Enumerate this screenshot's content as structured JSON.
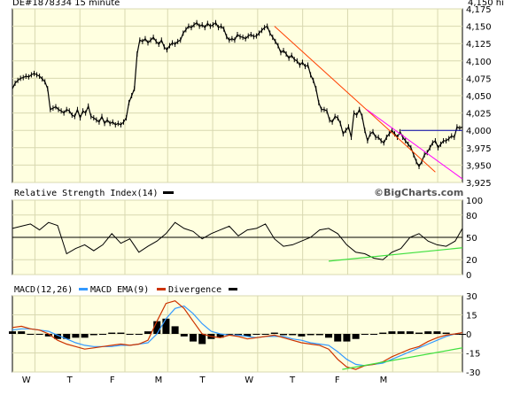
{
  "header_text": "DE#1878334 15 minute",
  "header_right": "4,150 hi",
  "brand": "©BigCharts.com",
  "colors": {
    "panel_bg": "#ffffe0",
    "grid": "#d8d8b0",
    "price": "#000000",
    "trend_down": "#ff4000",
    "trend_magenta": "#ff00ff",
    "resistance": "#0000aa",
    "support_green": "#40e040",
    "macd": "#000000",
    "macd_ema": "#3399ff",
    "divergence": "#000000",
    "macd_red": "#cc3300"
  },
  "chart_data": [
    {
      "type": "line",
      "name": "price",
      "ylim": [
        3925,
        4175
      ],
      "yticks": [
        "4,175",
        "4,150",
        "4,125",
        "4,100",
        "4,075",
        "4,050",
        "4,025",
        "4,000",
        "3,975",
        "3,950",
        "3,925"
      ],
      "ytick_values": [
        4175,
        4150,
        4125,
        4100,
        4075,
        4050,
        4025,
        4000,
        3975,
        3950,
        3925
      ],
      "x_labels": [
        "W",
        "T",
        "F",
        "M",
        "T",
        "W",
        "T",
        "F",
        "M"
      ],
      "x": [
        0,
        3,
        6,
        9,
        12,
        15,
        18,
        21,
        24,
        27,
        30,
        33,
        36,
        39,
        42,
        45,
        48,
        51,
        54,
        57,
        60,
        63,
        66,
        69,
        72,
        75,
        78,
        81,
        84,
        87,
        90,
        93,
        96,
        99,
        102,
        105,
        108,
        111,
        114,
        117,
        120,
        123,
        126,
        129,
        132,
        135,
        138,
        141,
        144,
        147,
        150,
        153,
        156,
        159,
        162,
        165,
        168,
        171,
        174,
        177,
        180,
        183,
        186,
        189,
        192,
        195,
        198,
        201,
        204,
        207,
        210,
        213,
        216,
        219,
        222,
        225,
        228,
        231,
        234,
        237,
        240,
        243,
        246,
        249,
        252,
        255,
        258,
        261,
        264,
        267,
        270,
        273,
        276,
        279,
        282,
        285,
        288,
        291,
        294,
        297,
        300,
        303,
        306,
        309,
        312,
        315,
        318,
        321,
        324,
        327,
        330,
        333,
        336,
        339,
        342,
        345,
        348,
        351,
        354,
        357,
        360,
        363,
        366,
        369,
        372,
        375,
        378,
        381,
        384,
        387,
        390,
        393,
        396,
        399,
        402,
        405,
        408,
        411,
        414,
        417,
        420,
        423,
        426,
        429,
        432,
        435,
        438,
        441,
        444,
        447,
        450,
        453,
        456,
        459,
        462,
        465,
        468,
        471,
        474,
        477,
        480,
        483,
        486,
        489,
        492,
        495,
        498
      ],
      "y": [
        4060,
        4068,
        4072,
        4075,
        4076,
        4078,
        4077,
        4080,
        4082,
        4080,
        4078,
        4074,
        4070,
        4060,
        4030,
        4032,
        4034,
        4030,
        4028,
        4025,
        4030,
        4028,
        4022,
        4020,
        4030,
        4018,
        4028,
        4025,
        4035,
        4020,
        4018,
        4015,
        4012,
        4020,
        4010,
        4015,
        4010,
        4012,
        4008,
        4010,
        4008,
        4012,
        4018,
        4040,
        4050,
        4060,
        4110,
        4130,
        4128,
        4132,
        4126,
        4130,
        4134,
        4128,
        4124,
        4130,
        4120,
        4116,
        4122,
        4126,
        4124,
        4128,
        4130,
        4140,
        4145,
        4150,
        4148,
        4152,
        4155,
        4150,
        4152,
        4148,
        4154,
        4150,
        4152,
        4155,
        4148,
        4150,
        4146,
        4135,
        4130,
        4132,
        4130,
        4138,
        4135,
        4134,
        4132,
        4136,
        4138,
        4135,
        4136,
        4140,
        4144,
        4148,
        4150,
        4140,
        4134,
        4128,
        4122,
        4112,
        4115,
        4110,
        4104,
        4108,
        4102,
        4100,
        4094,
        4098,
        4092,
        4094,
        4080,
        4072,
        4060,
        4040,
        4030,
        4030,
        4028,
        4015,
        4012,
        4020,
        4018,
        4010,
        3995,
        4000,
        4005,
        3990,
        4025,
        4022,
        4030,
        4020,
        4000,
        3985,
        3995,
        3998,
        3990,
        3990,
        3985,
        3982,
        3990,
        3995,
        4000,
        3995,
        3990,
        3998,
        3990,
        3985,
        3980,
        3975,
        3965,
        3955,
        3948,
        3955,
        3965,
        3968,
        3975,
        3982,
        3985,
        3975,
        3980,
        3985,
        3985,
        3988,
        3992,
        3990,
        4005,
        4003,
        4005
      ]
    },
    {
      "type": "line",
      "name": "Relative Strength Index(14)",
      "ylim": [
        0,
        100
      ],
      "yticks": [
        "100",
        "80",
        "50",
        "20",
        "0"
      ],
      "ytick_values": [
        100,
        80,
        50,
        20,
        0
      ],
      "x": [
        0,
        10,
        20,
        30,
        40,
        50,
        60,
        70,
        80,
        90,
        100,
        110,
        120,
        130,
        140,
        150,
        160,
        170,
        180,
        190,
        200,
        210,
        220,
        230,
        240,
        250,
        260,
        270,
        280,
        290,
        300,
        310,
        320,
        330,
        340,
        350,
        360,
        370,
        380,
        390,
        400,
        410,
        420,
        430,
        440,
        450,
        460,
        470,
        480,
        490,
        498
      ],
      "y": [
        62,
        65,
        68,
        60,
        70,
        66,
        28,
        35,
        40,
        32,
        40,
        55,
        42,
        48,
        30,
        38,
        45,
        55,
        70,
        62,
        58,
        48,
        55,
        60,
        65,
        52,
        60,
        62,
        68,
        48,
        38,
        40,
        45,
        50,
        60,
        62,
        55,
        40,
        30,
        28,
        22,
        20,
        30,
        35,
        50,
        55,
        45,
        40,
        38,
        45,
        62
      ]
    },
    {
      "type": "line",
      "name": "MACD(12,26)",
      "ylim": [
        -30,
        30
      ],
      "yticks": [
        "30",
        "15",
        "0",
        "-15",
        "-30"
      ],
      "ytick_values": [
        30,
        15,
        0,
        -15,
        -30
      ],
      "legend": [
        "MACD(12,26)",
        "MACD EMA(9)",
        "Divergence"
      ],
      "x": [
        0,
        10,
        20,
        30,
        40,
        50,
        60,
        70,
        80,
        90,
        100,
        110,
        120,
        130,
        140,
        150,
        160,
        170,
        180,
        190,
        200,
        210,
        220,
        230,
        240,
        250,
        260,
        270,
        280,
        290,
        300,
        310,
        320,
        330,
        340,
        350,
        360,
        370,
        380,
        390,
        400,
        410,
        420,
        430,
        440,
        450,
        460,
        470,
        480,
        490,
        498
      ],
      "macd": [
        5,
        6,
        4,
        3,
        0,
        -5,
        -8,
        -10,
        -12,
        -11,
        -10,
        -9,
        -8,
        -9,
        -8,
        -5,
        10,
        24,
        26,
        20,
        10,
        0,
        -2,
        -3,
        -1,
        -2,
        -4,
        -3,
        -2,
        -1,
        -3,
        -5,
        -7,
        -8,
        -9,
        -12,
        -20,
        -26,
        -28,
        -25,
        -24,
        -22,
        -18,
        -15,
        -12,
        -10,
        -6,
        -3,
        -1,
        0,
        1
      ],
      "ema": [
        3,
        4,
        4,
        3,
        2,
        -1,
        -4,
        -7,
        -9,
        -10,
        -10,
        -10,
        -9,
        -9,
        -8,
        -7,
        0,
        12,
        20,
        22,
        16,
        8,
        2,
        0,
        -1,
        -1,
        -2,
        -3,
        -2,
        -2,
        -2,
        -4,
        -5,
        -7,
        -8,
        -9,
        -14,
        -20,
        -24,
        -25,
        -24,
        -23,
        -20,
        -17,
        -14,
        -11,
        -8,
        -5,
        -2,
        0,
        1
      ],
      "divergence": [
        2,
        2,
        0,
        0,
        -2,
        -4,
        -4,
        -3,
        -3,
        -1,
        0,
        1,
        1,
        0,
        0,
        2,
        10,
        12,
        6,
        -2,
        -6,
        -8,
        -4,
        -3,
        0,
        -1,
        -2,
        0,
        0,
        1,
        -1,
        -1,
        -2,
        -1,
        -1,
        -3,
        -6,
        -6,
        -4,
        0,
        0,
        1,
        2,
        2,
        2,
        1,
        2,
        2,
        1,
        0,
        0
      ]
    }
  ]
}
